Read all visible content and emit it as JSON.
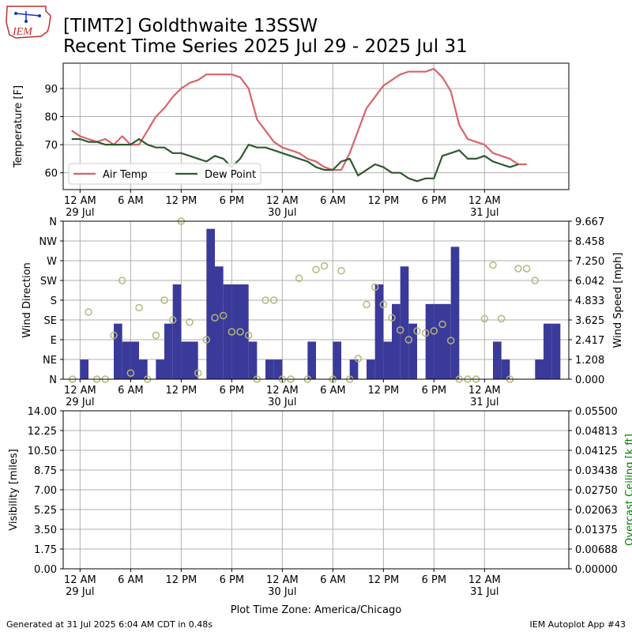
{
  "header": {
    "logo_text": "IEM",
    "title_line1": "[TIMT2] Goldthwaite 13SSW",
    "title_line2": "Recent Time Series 2025 Jul 29 - 2025 Jul 31"
  },
  "footer": {
    "generated": "Generated at 31 Jul 2025 6:04 AM CDT in 0.48s",
    "app": "IEM Autoplot App #43"
  },
  "colors": {
    "air_temp": "#d9646a",
    "dew_point": "#2f5a2f",
    "wind_bar": "#3a3a9a",
    "wind_dir": "#b4b878",
    "ceiling_label": "#008000",
    "grid": "#b0b0b0"
  },
  "chart_data": [
    {
      "type": "line",
      "ylabel": "Temperature [F]",
      "ylim": [
        54,
        99
      ],
      "yticks": [
        60,
        70,
        80,
        90
      ],
      "xrange_hours": [
        -2,
        58
      ],
      "x_unit": "hours since 2025-07-29 00:00 CDT",
      "grid": true,
      "legend_placement": "lower-left",
      "series": [
        {
          "name": "Air Temp",
          "x": [
            -1,
            0,
            1,
            2,
            3,
            4,
            5,
            6,
            7,
            8,
            9,
            10,
            11,
            12,
            13,
            14,
            15,
            16,
            17,
            18,
            19,
            20,
            21,
            22,
            23,
            24,
            25,
            26,
            27,
            28,
            29,
            30,
            31,
            32,
            33,
            34,
            35,
            36,
            37,
            38,
            39,
            40,
            41,
            42,
            43,
            44,
            45,
            46,
            47,
            48,
            49,
            50,
            51,
            52,
            53,
            54,
            55,
            56,
            57
          ],
          "values": [
            75,
            73,
            72,
            71,
            72,
            70,
            73,
            70,
            70,
            75,
            80,
            83,
            87,
            90,
            92,
            93,
            95,
            95,
            95,
            95,
            94,
            90,
            79,
            75,
            71,
            69,
            68,
            67,
            65,
            64,
            62,
            61,
            61,
            67,
            75,
            83,
            87,
            91,
            93,
            95,
            96,
            96,
            96,
            97,
            94,
            89,
            77,
            72,
            71,
            70,
            67,
            66,
            65,
            63,
            63,
            null,
            null,
            null,
            null
          ]
        },
        {
          "name": "Dew Point",
          "x": [
            -1,
            0,
            1,
            2,
            3,
            4,
            5,
            6,
            7,
            8,
            9,
            10,
            11,
            12,
            13,
            14,
            15,
            16,
            17,
            18,
            19,
            20,
            21,
            22,
            23,
            24,
            25,
            26,
            27,
            28,
            29,
            30,
            31,
            32,
            33,
            34,
            35,
            36,
            37,
            38,
            39,
            40,
            41,
            42,
            43,
            44,
            45,
            46,
            47,
            48,
            49,
            50,
            51,
            52,
            53,
            54,
            55,
            56,
            57
          ],
          "values": [
            72,
            72,
            71,
            71,
            70,
            70,
            70,
            70,
            72,
            70,
            69,
            69,
            67,
            67,
            66,
            65,
            64,
            66,
            65,
            62,
            65,
            70,
            69,
            69,
            68,
            67,
            66,
            65,
            64,
            62,
            61,
            61,
            64,
            65,
            59,
            61,
            63,
            62,
            60,
            60,
            58,
            57,
            58,
            58,
            66,
            67,
            68,
            65,
            65,
            66,
            64,
            63,
            62,
            63,
            null,
            null,
            null,
            null,
            null
          ]
        }
      ]
    },
    {
      "type": "bar",
      "left_axis": {
        "label": "Wind Direction",
        "ticks": [
          "N",
          "NE",
          "E",
          "SE",
          "S",
          "SW",
          "W",
          "NW",
          "N"
        ]
      },
      "right_axis": {
        "label": "Wind Speed [mph]",
        "ticks": [
          "0.000",
          "1.208",
          "2.417",
          "3.625",
          "4.833",
          "6.042",
          "7.250",
          "8.458",
          "9.667"
        ],
        "max": 9.667
      },
      "xrange_hours": [
        -2,
        58
      ],
      "grid": true,
      "wind_speed_mph": [
        0,
        1.2,
        0,
        0,
        0,
        3.4,
        2.3,
        2.3,
        1.2,
        0,
        1.2,
        3.4,
        5.8,
        2.3,
        2.3,
        0,
        9.2,
        6.9,
        5.8,
        5.8,
        5.8,
        2.3,
        0,
        1.2,
        1.2,
        0,
        0,
        0,
        2.3,
        0,
        0,
        2.3,
        0,
        1.2,
        0,
        1.2,
        5.8,
        2.3,
        4.6,
        6.9,
        3.4,
        0,
        4.6,
        4.6,
        4.6,
        8.1,
        0,
        0,
        0,
        0,
        2.3,
        1.2,
        0,
        0,
        0,
        1.2,
        3.4,
        3.4
      ],
      "wind_direction_deg": [
        [
          -0.9,
          0
        ],
        [
          1,
          153
        ],
        [
          2,
          0
        ],
        [
          3,
          0
        ],
        [
          4,
          100
        ],
        [
          5,
          225
        ],
        [
          6,
          14
        ],
        [
          7,
          163
        ],
        [
          8,
          0
        ],
        [
          9,
          100
        ],
        [
          10,
          180
        ],
        [
          11,
          135
        ],
        [
          12,
          360
        ],
        [
          13,
          130
        ],
        [
          14,
          14
        ],
        [
          15,
          90
        ],
        [
          16,
          140
        ],
        [
          17,
          145
        ],
        [
          18,
          108
        ],
        [
          19,
          108
        ],
        [
          20,
          100
        ],
        [
          21,
          0
        ],
        [
          22,
          180
        ],
        [
          23,
          180
        ],
        [
          24,
          0
        ],
        [
          25,
          0
        ],
        [
          26,
          230
        ],
        [
          27,
          0
        ],
        [
          28,
          250
        ],
        [
          29,
          258
        ],
        [
          30,
          0
        ],
        [
          31,
          247
        ],
        [
          32,
          0
        ],
        [
          33,
          47
        ],
        [
          34,
          170
        ],
        [
          35,
          210
        ],
        [
          36,
          170
        ],
        [
          37,
          140
        ],
        [
          38,
          112
        ],
        [
          39,
          90
        ],
        [
          40,
          110
        ],
        [
          41,
          105
        ],
        [
          42,
          110
        ],
        [
          43,
          125
        ],
        [
          44,
          88
        ],
        [
          45,
          0
        ],
        [
          46,
          0
        ],
        [
          47,
          0
        ],
        [
          48,
          138
        ],
        [
          49,
          260
        ],
        [
          50,
          138
        ],
        [
          51,
          0
        ],
        [
          52,
          252
        ],
        [
          53,
          252
        ],
        [
          54,
          225
        ]
      ]
    },
    {
      "type": "line",
      "left_axis": {
        "label": "Visibility [miles]",
        "ticks": [
          "0.00",
          "1.75",
          "3.50",
          "5.25",
          "7.00",
          "8.75",
          "10.50",
          "12.25",
          "14.00"
        ]
      },
      "right_axis": {
        "label": "Overcast Ceiling [k ft]",
        "ticks": [
          "0.00000",
          "0.00688",
          "0.01375",
          "0.02063",
          "0.02750",
          "0.03438",
          "0.04125",
          "0.04813",
          "0.05500"
        ]
      },
      "xrange_hours": [
        -2,
        58
      ],
      "grid": true,
      "series": []
    }
  ],
  "x_axis": {
    "ticks": [
      {
        "h": 0,
        "line1": "12 AM",
        "line2": "29 Jul"
      },
      {
        "h": 6,
        "line1": "6 AM",
        "line2": ""
      },
      {
        "h": 12,
        "line1": "12 PM",
        "line2": ""
      },
      {
        "h": 18,
        "line1": "6 PM",
        "line2": ""
      },
      {
        "h": 24,
        "line1": "12 AM",
        "line2": "30 Jul"
      },
      {
        "h": 30,
        "line1": "6 AM",
        "line2": ""
      },
      {
        "h": 36,
        "line1": "12 PM",
        "line2": ""
      },
      {
        "h": 42,
        "line1": "6 PM",
        "line2": ""
      },
      {
        "h": 48,
        "line1": "12 AM",
        "line2": "31 Jul"
      }
    ],
    "xlabel": "Plot Time Zone: America/Chicago"
  }
}
